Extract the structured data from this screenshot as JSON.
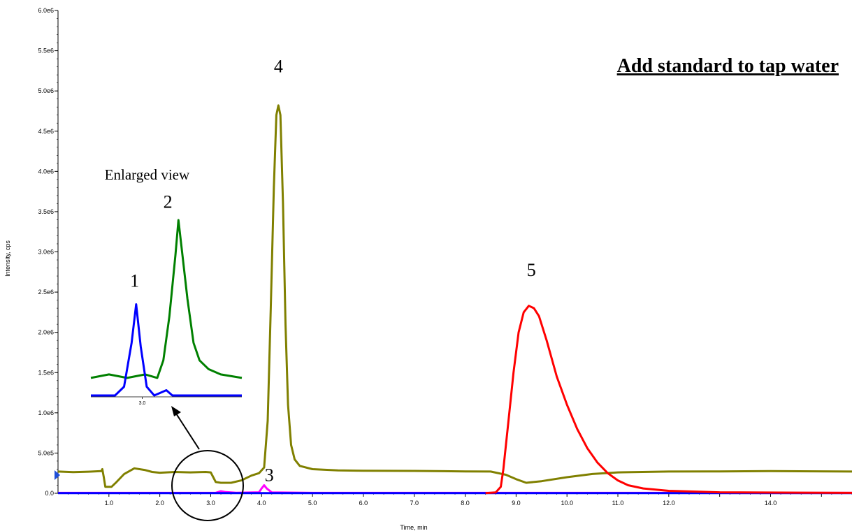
{
  "chart_data": {
    "type": "line",
    "title": "Add standard to tap water",
    "xlabel": "Time, min",
    "ylabel": "Intensity, cps",
    "xlim": [
      0,
      15.6
    ],
    "ylim": [
      0,
      6000000
    ],
    "x_ticks": [
      {
        "v": 1,
        "label": "1.0"
      },
      {
        "v": 2,
        "label": "2.0"
      },
      {
        "v": 3,
        "label": "3.0"
      },
      {
        "v": 4,
        "label": "4.0"
      },
      {
        "v": 5,
        "label": "5.0"
      },
      {
        "v": 6,
        "label": "6.0"
      },
      {
        "v": 7,
        "label": "7.0"
      },
      {
        "v": 8,
        "label": "8.0"
      },
      {
        "v": 9,
        "label": "9.0"
      },
      {
        "v": 10,
        "label": "10.0"
      },
      {
        "v": 11,
        "label": "11.0"
      },
      {
        "v": 12,
        "label": "12.0"
      },
      {
        "v": 14,
        "label": "14.0"
      }
    ],
    "x_minor_ticks": [
      13,
      15
    ],
    "y_ticks": [
      {
        "v": 0,
        "label": "0.0"
      },
      {
        "v": 500000,
        "label": "5.0e5"
      },
      {
        "v": 1000000,
        "label": "1.0e6"
      },
      {
        "v": 1500000,
        "label": "1.5e6"
      },
      {
        "v": 2000000,
        "label": "2.0e6"
      },
      {
        "v": 2500000,
        "label": "2.5e6"
      },
      {
        "v": 3000000,
        "label": "3.0e6"
      },
      {
        "v": 3500000,
        "label": "3.5e6"
      },
      {
        "v": 4000000,
        "label": "4.0e6"
      },
      {
        "v": 4500000,
        "label": "4.5e6"
      },
      {
        "v": 5000000,
        "label": "5.0e6"
      },
      {
        "v": 5500000,
        "label": "5.5e6"
      },
      {
        "v": 6000000,
        "label": "6.0e6"
      }
    ],
    "series": [
      {
        "color": "#808000",
        "points": [
          [
            0,
            270000
          ],
          [
            0.3,
            262000
          ],
          [
            0.6,
            268000
          ],
          [
            0.85,
            275000
          ],
          [
            0.87,
            300000
          ],
          [
            0.9,
            200000
          ],
          [
            0.93,
            80000
          ],
          [
            1.05,
            80000
          ],
          [
            1.15,
            140000
          ],
          [
            1.3,
            240000
          ],
          [
            1.5,
            310000
          ],
          [
            1.7,
            290000
          ],
          [
            1.85,
            265000
          ],
          [
            2.0,
            255000
          ],
          [
            2.3,
            265000
          ],
          [
            2.6,
            260000
          ],
          [
            2.9,
            265000
          ],
          [
            3.0,
            260000
          ],
          [
            3.05,
            200000
          ],
          [
            3.1,
            140000
          ],
          [
            3.2,
            130000
          ],
          [
            3.4,
            130000
          ],
          [
            3.6,
            160000
          ],
          [
            3.8,
            220000
          ],
          [
            3.95,
            250000
          ],
          [
            4.05,
            320000
          ],
          [
            4.12,
            900000
          ],
          [
            4.18,
            2300000
          ],
          [
            4.24,
            3800000
          ],
          [
            4.29,
            4700000
          ],
          [
            4.33,
            4820000
          ],
          [
            4.37,
            4700000
          ],
          [
            4.42,
            3600000
          ],
          [
            4.47,
            2100000
          ],
          [
            4.52,
            1100000
          ],
          [
            4.58,
            600000
          ],
          [
            4.65,
            420000
          ],
          [
            4.75,
            340000
          ],
          [
            5.0,
            300000
          ],
          [
            5.5,
            285000
          ],
          [
            6.0,
            280000
          ],
          [
            7.0,
            278000
          ],
          [
            8.0,
            272000
          ],
          [
            8.5,
            270000
          ],
          [
            8.8,
            230000
          ],
          [
            9.0,
            175000
          ],
          [
            9.2,
            130000
          ],
          [
            9.5,
            150000
          ],
          [
            10.0,
            200000
          ],
          [
            10.5,
            240000
          ],
          [
            11.0,
            260000
          ],
          [
            12.0,
            270000
          ],
          [
            13.0,
            272000
          ],
          [
            14.0,
            275000
          ],
          [
            15.6,
            270000
          ]
        ]
      },
      {
        "color": "#ff00ff",
        "points": [
          [
            0,
            5000
          ],
          [
            3.1,
            6000
          ],
          [
            3.2,
            25000
          ],
          [
            3.3,
            15000
          ],
          [
            3.5,
            6000
          ],
          [
            3.95,
            12000
          ],
          [
            4.0,
            60000
          ],
          [
            4.05,
            100000
          ],
          [
            4.1,
            60000
          ],
          [
            4.2,
            10000
          ],
          [
            5.0,
            5000
          ],
          [
            15.6,
            5000
          ]
        ]
      },
      {
        "color": "#0000ff",
        "points": [
          [
            0,
            3000
          ],
          [
            15.6,
            3000
          ]
        ]
      },
      {
        "color": "#ff0000",
        "points": [
          [
            8.4,
            2000
          ],
          [
            8.6,
            10000
          ],
          [
            8.7,
            80000
          ],
          [
            8.75,
            300000
          ],
          [
            8.85,
            900000
          ],
          [
            8.95,
            1500000
          ],
          [
            9.05,
            2000000
          ],
          [
            9.15,
            2250000
          ],
          [
            9.25,
            2330000
          ],
          [
            9.35,
            2300000
          ],
          [
            9.45,
            2200000
          ],
          [
            9.6,
            1900000
          ],
          [
            9.8,
            1450000
          ],
          [
            10.0,
            1100000
          ],
          [
            10.2,
            800000
          ],
          [
            10.4,
            560000
          ],
          [
            10.6,
            380000
          ],
          [
            10.8,
            250000
          ],
          [
            11.0,
            160000
          ],
          [
            11.2,
            100000
          ],
          [
            11.5,
            60000
          ],
          [
            12.0,
            30000
          ],
          [
            13.0,
            12000
          ],
          [
            15.6,
            5000
          ]
        ]
      }
    ],
    "annotations": [
      {
        "label": "4",
        "x": 4.33,
        "y": 5230000
      },
      {
        "label": "5",
        "x": 9.3,
        "y": 2700000
      },
      {
        "label": "3",
        "x": 4.15,
        "y": 150000
      },
      {
        "label": "Enlarged view",
        "x": 1.75,
        "y": 3900000
      }
    ],
    "inset": {
      "x_tick_label": "3.0",
      "labels": [
        {
          "label": "1"
        },
        {
          "label": "2"
        }
      ],
      "series": [
        {
          "color": "#008000",
          "points": [
            [
              0,
              0.1
            ],
            [
              0.12,
              0.12
            ],
            [
              0.24,
              0.1
            ],
            [
              0.36,
              0.12
            ],
            [
              0.44,
              0.1
            ],
            [
              0.48,
              0.2
            ],
            [
              0.52,
              0.45
            ],
            [
              0.56,
              0.8
            ],
            [
              0.58,
              1.0
            ],
            [
              0.6,
              0.85
            ],
            [
              0.64,
              0.55
            ],
            [
              0.68,
              0.3
            ],
            [
              0.72,
              0.2
            ],
            [
              0.78,
              0.15
            ],
            [
              0.86,
              0.12
            ],
            [
              1.0,
              0.1
            ]
          ]
        },
        {
          "color": "#0000ff",
          "points": [
            [
              0,
              0.0
            ],
            [
              0.16,
              0.0
            ],
            [
              0.22,
              0.05
            ],
            [
              0.27,
              0.3
            ],
            [
              0.3,
              0.52
            ],
            [
              0.33,
              0.28
            ],
            [
              0.37,
              0.05
            ],
            [
              0.42,
              0.0
            ],
            [
              0.5,
              0.03
            ],
            [
              0.54,
              0.0
            ],
            [
              1.0,
              0.0
            ]
          ]
        }
      ]
    }
  }
}
